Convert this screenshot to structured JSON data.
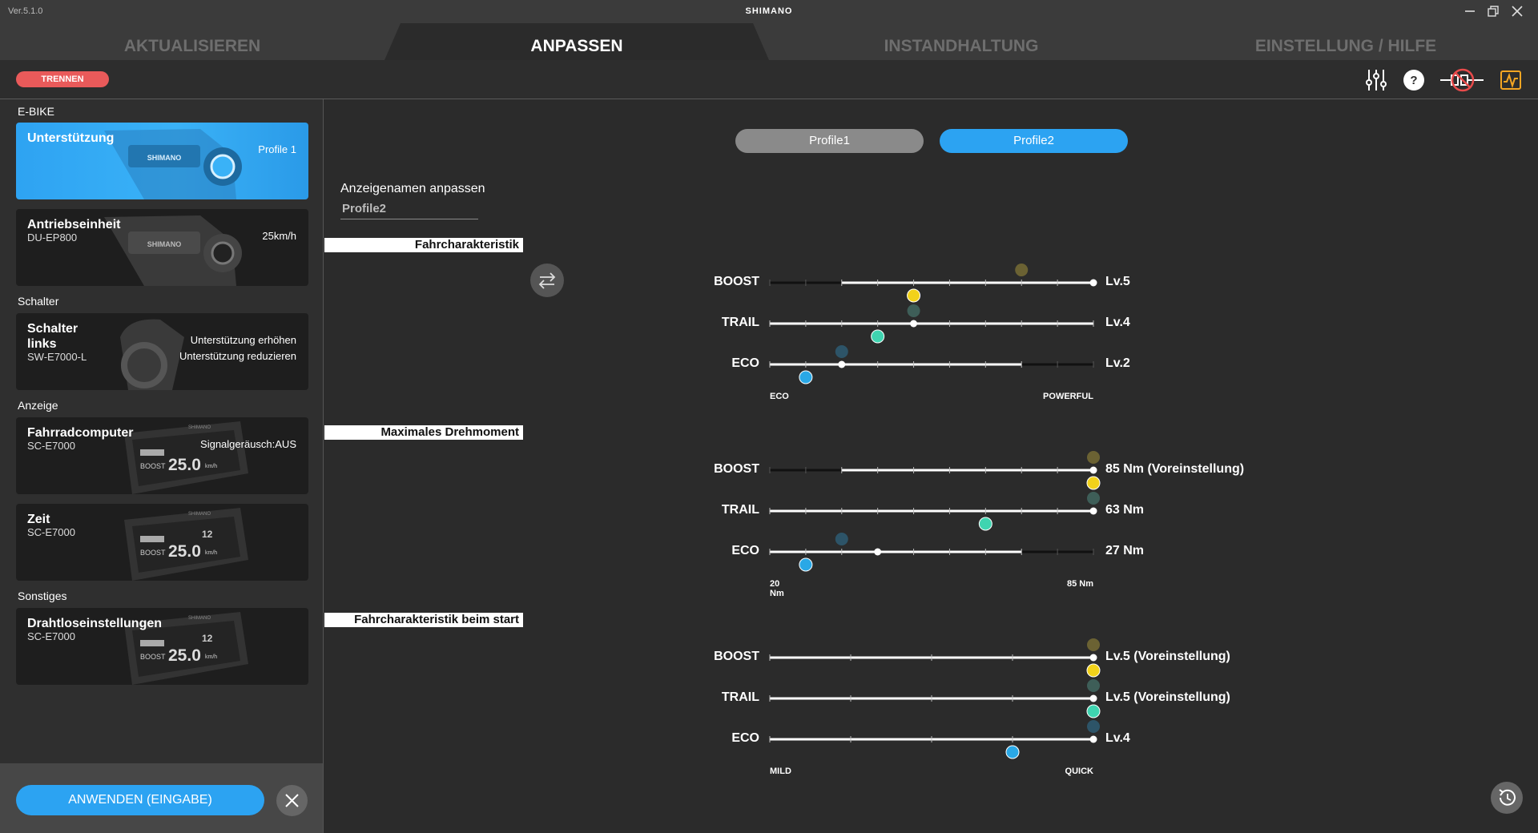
{
  "app": {
    "version": "Ver.5.1.0",
    "brand": "SHIMANO",
    "window_controls": [
      "minimize-icon",
      "restore-icon",
      "close-icon"
    ]
  },
  "tabs": [
    {
      "label": "AKTUALISIEREN",
      "active": false
    },
    {
      "label": "ANPASSEN",
      "active": true
    },
    {
      "label": "INSTANDHALTUNG",
      "active": false
    },
    {
      "label": "EINSTELLUNG / HILFE",
      "active": false
    }
  ],
  "toolbar": {
    "disconnect_label": "TRENNEN",
    "icons": [
      "sliders-icon",
      "help-icon",
      "no-connection-icon",
      "graph-icon"
    ]
  },
  "sidebar": {
    "sections": [
      {
        "label": "E-BIKE"
      },
      {
        "label": "Schalter"
      },
      {
        "label": "Anzeige"
      },
      {
        "label": "Sonstiges"
      }
    ],
    "cards": [
      {
        "title": "Unterstützung",
        "subtitle": "",
        "value": "Profile 1",
        "active": true
      },
      {
        "title": "Antriebseinheit",
        "subtitle": "DU-EP800",
        "value": "25km/h",
        "active": false
      },
      {
        "title": "Schalter links",
        "subtitle": "SW-E7000-L",
        "value": "Unterstützung erhöhen",
        "value2": "Unterstützung reduzieren",
        "active": false
      },
      {
        "title": "Fahrradcomputer",
        "subtitle": "SC-E7000",
        "value": "Signalgeräusch:AUS",
        "active": false
      },
      {
        "title": "Zeit",
        "subtitle": "SC-E7000",
        "value": "",
        "active": false
      },
      {
        "title": "Drahtloseinstellungen",
        "subtitle": "SC-E7000",
        "value": "",
        "active": false
      }
    ],
    "display_art": {
      "mode": "BOOST",
      "speed": "25.0",
      "unit": "km/h",
      "brand": "SHIMANO",
      "clock": "12"
    },
    "apply_label": "ANWENDEN (EINGABE)"
  },
  "main": {
    "profiles": [
      {
        "label": "Profile1",
        "active": false
      },
      {
        "label": "Profile2",
        "active": true
      }
    ],
    "custom_name_label": "Anzeigenamen anpassen",
    "custom_name_value": "Profile2",
    "colors": {
      "boost_marker": "#f2d21a",
      "boost_ghost": "#6b6233",
      "trail_marker": "#3fd4b0",
      "trail_ghost": "#3e5e58",
      "eco_marker": "#2aa8e6",
      "eco_ghost": "#2d5468",
      "accent": "#2ca3f2"
    },
    "sections": [
      {
        "title": "Fahrcharakteristik",
        "min_label": "ECO",
        "max_label": "POWERFUL",
        "rows": [
          {
            "name": "BOOST",
            "value_label": "Lv.5",
            "range": [
              2,
              9
            ],
            "ticks": 10,
            "setting": 9,
            "p1": 7,
            "p2": 4
          },
          {
            "name": "TRAIL",
            "value_label": "Lv.4",
            "range": [
              0,
              9
            ],
            "ticks": 10,
            "setting": 4,
            "p1": 4,
            "p2": 3
          },
          {
            "name": "ECO",
            "value_label": "Lv.2",
            "range": [
              0,
              7
            ],
            "ticks": 10,
            "setting": 2,
            "p1": 2,
            "p2": 1
          }
        ]
      },
      {
        "title": "Maximales Drehmoment",
        "min_label": "20 Nm",
        "max_label": "85 Nm",
        "rows": [
          {
            "name": "BOOST",
            "value_label": "85 Nm (Voreinstellung)",
            "range": [
              2,
              9
            ],
            "ticks": 10,
            "setting": 9,
            "p1": 9,
            "p2": 9
          },
          {
            "name": "TRAIL",
            "value_label": "63 Nm",
            "range": [
              0,
              9
            ],
            "ticks": 10,
            "setting": 9,
            "p1": 9,
            "p2": 6
          },
          {
            "name": "ECO",
            "value_label": "27 Nm",
            "range": [
              0,
              7
            ],
            "ticks": 10,
            "setting": 3,
            "p1": 2,
            "p2": 1
          }
        ]
      },
      {
        "title": "Fahrcharakteristik beim start",
        "min_label": "MILD",
        "max_label": "QUICK",
        "rows": [
          {
            "name": "BOOST",
            "value_label": "Lv.5 (Voreinstellung)",
            "range": [
              0,
              4
            ],
            "ticks": 5,
            "setting": 4,
            "p1": 4,
            "p2": 4
          },
          {
            "name": "TRAIL",
            "value_label": "Lv.5 (Voreinstellung)",
            "range": [
              0,
              4
            ],
            "ticks": 5,
            "setting": 4,
            "p1": 4,
            "p2": 4
          },
          {
            "name": "ECO",
            "value_label": "Lv.4",
            "range": [
              0,
              4
            ],
            "ticks": 5,
            "setting": 4,
            "p1": 4,
            "p2": 3
          }
        ]
      }
    ]
  }
}
